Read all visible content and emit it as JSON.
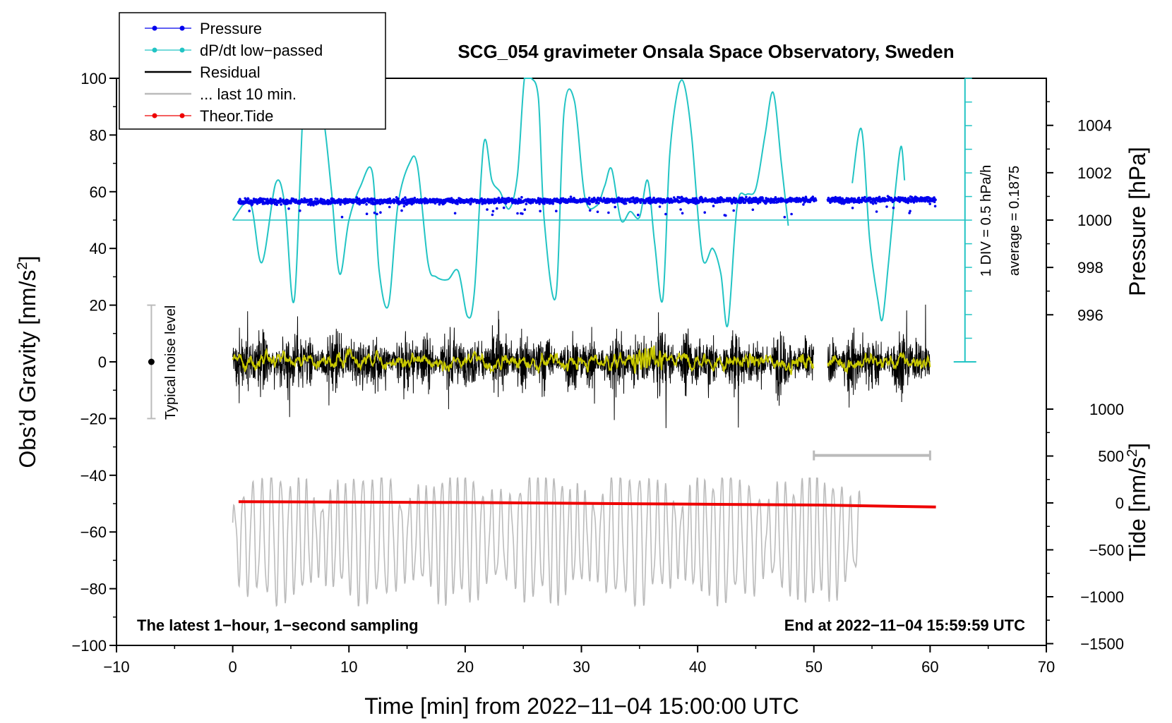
{
  "chart_data": {
    "type": "line",
    "title": "SCG_054 gravimeter Onsala Space Observatory, Sweden",
    "xlabel": "Time [min] from 2022−11−04 15:00:00 UTC",
    "ylabel": "Obs’d Gravity [nm/s²]",
    "ylabel_base": "Obs’d Gravity [nm/s",
    "ylabel_sup": "2",
    "ylabel_end": "]",
    "xlim": [
      -10,
      70
    ],
    "ylim": [
      -100,
      100
    ],
    "x_ticks": [
      "−10",
      "0",
      "10",
      "20",
      "30",
      "40",
      "50",
      "60",
      "70"
    ],
    "y_ticks": [
      "−100",
      "−80",
      "−60",
      "−40",
      "−20",
      "0",
      "20",
      "40",
      "60",
      "80",
      "100"
    ],
    "pressure_axis": {
      "label": "Pressure [hPa]",
      "ticks": [
        "1004",
        "1002",
        "1000",
        "998",
        "996"
      ],
      "tick_values": [
        1004,
        1002,
        1000,
        998,
        996
      ],
      "mapping": "1000 hPa at gravity 50, 2 hPa = 16.7 nm/s²"
    },
    "tide_axis": {
      "label_base": "Tide [nm/s",
      "label_sup": "2",
      "label_end": "]",
      "ticks": [
        "1000",
        "500",
        "0",
        "−500",
        "−1000",
        "−1500"
      ],
      "tick_values": [
        1000,
        500,
        0,
        -500,
        -1000,
        -1500
      ]
    },
    "legend": [
      {
        "label": "Pressure",
        "color": "#0000ee",
        "marker": true
      },
      {
        "label": "dP/dt low−passed",
        "color": "#22c4c4",
        "marker": true
      },
      {
        "label": "Residual",
        "color": "#000000",
        "marker": false
      },
      {
        "label": "... last 10 min.",
        "color": "#bbbbbb",
        "marker": false
      },
      {
        "label": "Theor.Tide",
        "color": "#ee0000",
        "marker": true
      }
    ],
    "annotations": {
      "bottom_left": "The latest 1−hour, 1−second sampling",
      "bottom_right": "End at 2022−11−04 15:59:59 UTC",
      "noise_level": "Typical noise level",
      "div_label": "1 DIV = 0.5 hPa/h",
      "average_label": "average = 0.1875"
    },
    "series": [
      {
        "name": "Pressure",
        "units": "gravity-axis units",
        "color": "#0000ee",
        "x_range": [
          0.5,
          60.5
        ],
        "gap": [
          50.2,
          51.2
        ],
        "level_start": 56.5,
        "level_end": 57.2,
        "scatter_low": 51,
        "scatter_high": 59
      },
      {
        "name": "dP/dt low-passed",
        "color": "#22c4c4",
        "baseline": 50,
        "segment1": {
          "x": [
            0.0,
            1.5,
            2.5,
            3.7,
            4.5,
            5.3,
            6.2,
            7.0,
            7.8,
            8.5,
            9.2,
            10.0,
            11.0,
            12.0,
            12.6,
            13.4,
            14.2,
            15.2,
            15.9,
            16.8,
            17.5,
            18.5,
            19.4,
            20.2,
            20.8,
            21.6,
            22.3,
            23.0,
            23.8,
            24.5,
            25.1,
            25.7,
            26.3,
            26.8,
            27.8,
            28.5,
            29.4,
            30.3,
            31.3,
            32.0,
            32.6,
            33.4,
            34.2,
            35.0,
            35.7,
            36.3,
            37.0,
            37.6,
            38.4,
            38.9,
            39.5,
            40.4,
            41.3,
            42.0,
            42.6,
            43.4,
            44.2,
            45.0,
            45.8,
            46.5,
            47.2,
            47.8
          ],
          "y": [
            50,
            56,
            35,
            63,
            55,
            22,
            100,
            93,
            86,
            60,
            31,
            50,
            62,
            67,
            32,
            20,
            55,
            70,
            69,
            35,
            30,
            29,
            32,
            16,
            25,
            77,
            64,
            60,
            54,
            66,
            100,
            100,
            93,
            50,
            23,
            88,
            92,
            58,
            55,
            62,
            68,
            50,
            53,
            51,
            64,
            42,
            22,
            73,
            98,
            97,
            79,
            37,
            40,
            31,
            13,
            55,
            59,
            61,
            80,
            95,
            70,
            48
          ]
        },
        "segment2": {
          "x": [
            53.3,
            54.1,
            54.8,
            55.5,
            55.9,
            56.4,
            57.0,
            57.5,
            57.8
          ],
          "y": [
            63,
            82,
            43,
            22,
            15,
            34,
            60,
            76,
            64
          ]
        }
      },
      {
        "name": "Residual",
        "color": "#000000",
        "x_range": [
          0,
          60
        ],
        "gap": [
          50,
          51.2
        ],
        "typical_range": [
          -20,
          20
        ],
        "extremes": [
          26,
          -30
        ]
      },
      {
        "name": "Residual smoothed",
        "color": "#c8c800",
        "typical_range": [
          -3,
          3
        ]
      },
      {
        "name": "... last 10 min.",
        "color": "#bbbbbb",
        "x_range": [
          0,
          54
        ],
        "center": -62,
        "range": [
          -86,
          -41
        ]
      },
      {
        "name": "Theor.Tide",
        "color": "#ee0000",
        "x": [
          0.5,
          20,
          40,
          50.5,
          60.5
        ],
        "y": [
          -49.3,
          -49.6,
          -50.2,
          -50.5,
          -51.2
        ]
      }
    ],
    "noise_bar": {
      "x": -7,
      "center": 0,
      "range": [
        -20,
        20
      ]
    },
    "scale_bar": {
      "x_range": [
        50,
        60
      ],
      "y": -33
    },
    "div_scale": {
      "x": 63,
      "y_range": [
        0,
        100
      ],
      "div_step": 8.33
    }
  }
}
